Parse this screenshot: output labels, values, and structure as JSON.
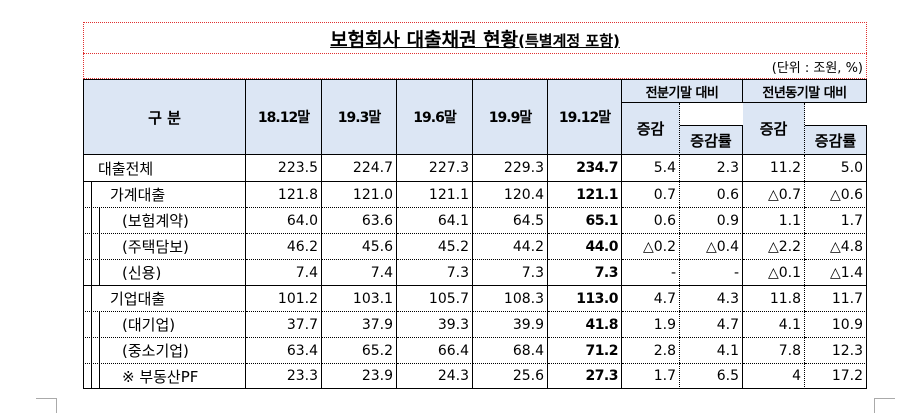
{
  "title": {
    "main": "보험회사 대출채권 현황",
    "sub": "(특별계정 포함)"
  },
  "unit": "(단위 : 조원, %)",
  "table": {
    "header": {
      "label": "구 분",
      "periods": [
        "18.12말",
        "19.3말",
        "19.6말",
        "19.9말",
        "19.12말"
      ],
      "groups": [
        "전분기말 대비",
        "전년동기말 대비"
      ],
      "subs": [
        "증감",
        "증감률",
        "증감",
        "증감률"
      ]
    },
    "rows": [
      {
        "label": "대출전체",
        "cells": [
          "223.5",
          "224.7",
          "227.3",
          "229.3",
          "234.7",
          "5.4",
          "2.3",
          "11.2",
          "5.0"
        ]
      },
      {
        "label": "가계대출",
        "cells": [
          "121.8",
          "121.0",
          "121.1",
          "120.4",
          "121.1",
          "0.7",
          "0.6",
          "△0.7",
          "△0.6"
        ]
      },
      {
        "label": "(보험계약)",
        "cells": [
          "64.0",
          "63.6",
          "64.1",
          "64.5",
          "65.1",
          "0.6",
          "0.9",
          "1.1",
          "1.7"
        ]
      },
      {
        "label": "(주택담보)",
        "cells": [
          "46.2",
          "45.6",
          "45.2",
          "44.2",
          "44.0",
          "△0.2",
          "△0.4",
          "△2.2",
          "△4.8"
        ]
      },
      {
        "label": "(신용)",
        "cells": [
          "7.4",
          "7.4",
          "7.3",
          "7.3",
          "7.3",
          "-",
          "-",
          "△0.1",
          "△1.4"
        ]
      },
      {
        "label": "기업대출",
        "cells": [
          "101.2",
          "103.1",
          "105.7",
          "108.3",
          "113.0",
          "4.7",
          "4.3",
          "11.8",
          "11.7"
        ]
      },
      {
        "label": "(대기업)",
        "cells": [
          "37.7",
          "37.9",
          "39.3",
          "39.9",
          "41.8",
          "1.9",
          "4.7",
          "4.1",
          "10.9"
        ]
      },
      {
        "label": "(중소기업)",
        "cells": [
          "63.4",
          "65.2",
          "66.4",
          "68.4",
          "71.2",
          "2.8",
          "4.1",
          "7.8",
          "12.3"
        ]
      },
      {
        "label": "※ 부동산PF",
        "cells": [
          "23.3",
          "23.9",
          "24.3",
          "25.6",
          "27.3",
          "1.7",
          "6.5",
          "4",
          "17.2"
        ]
      }
    ]
  }
}
